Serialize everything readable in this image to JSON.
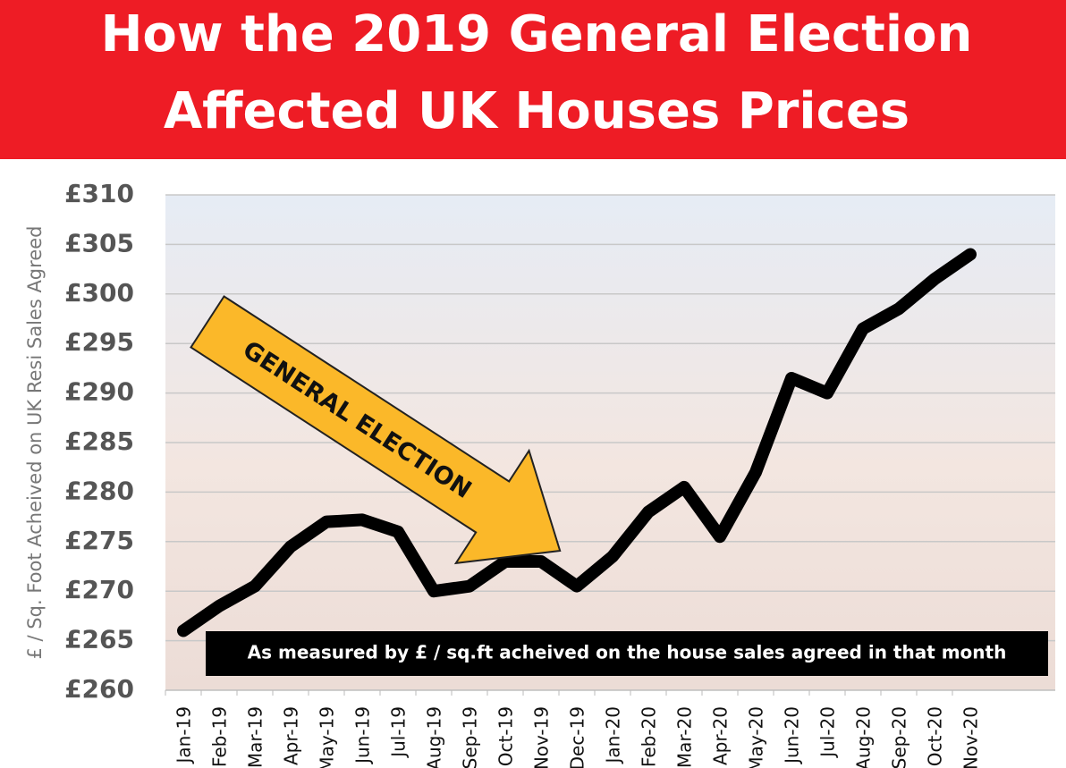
{
  "chart_data": {
    "type": "line",
    "title": [
      "How the 2019 General Election",
      "Affected UK Houses Prices"
    ],
    "y_label": "£ / Sq. Foot Acheived on UK Resi Sales Agreed",
    "annotations": [
      "GENERAL ELECTION",
      "As measured by £ / sq.ft acheived on the house sales agreed in that month"
    ],
    "categories": [
      "Jan-19",
      "Feb-19",
      "Mar-19",
      "Apr-19",
      "May-19",
      "Jun-19",
      "Jul-19",
      "Aug-19",
      "Sep-19",
      "Oct-19",
      "Nov-19",
      "Dec-19",
      "Jan-20",
      "Feb-20",
      "Mar-20",
      "Apr-20",
      "May-20",
      "Jun-20",
      "Jul-20",
      "Aug-20",
      "Sep-20",
      "Oct-20",
      "Nov-20"
    ],
    "values": [
      266,
      268.5,
      270.5,
      274.5,
      277,
      277.2,
      276,
      270,
      270.5,
      273,
      273,
      270.5,
      273.5,
      278,
      280.5,
      275.5,
      282,
      291.5,
      290,
      296.5,
      298.5,
      301.5,
      304
    ],
    "color": "#000000",
    "ylim": [
      260,
      310
    ],
    "yticks": [
      {
        "value": 260,
        "label": "£260"
      },
      {
        "value": 265,
        "label": "£265"
      },
      {
        "value": 270,
        "label": "£270"
      },
      {
        "value": 275,
        "label": "£275"
      },
      {
        "value": 280,
        "label": "£280"
      },
      {
        "value": 285,
        "label": "£285"
      },
      {
        "value": 290,
        "label": "£290"
      },
      {
        "value": 295,
        "label": "£295"
      },
      {
        "value": 300,
        "label": "£300"
      },
      {
        "value": 305,
        "label": "£305"
      },
      {
        "value": 310,
        "label": "£310"
      }
    ],
    "grid": true
  }
}
